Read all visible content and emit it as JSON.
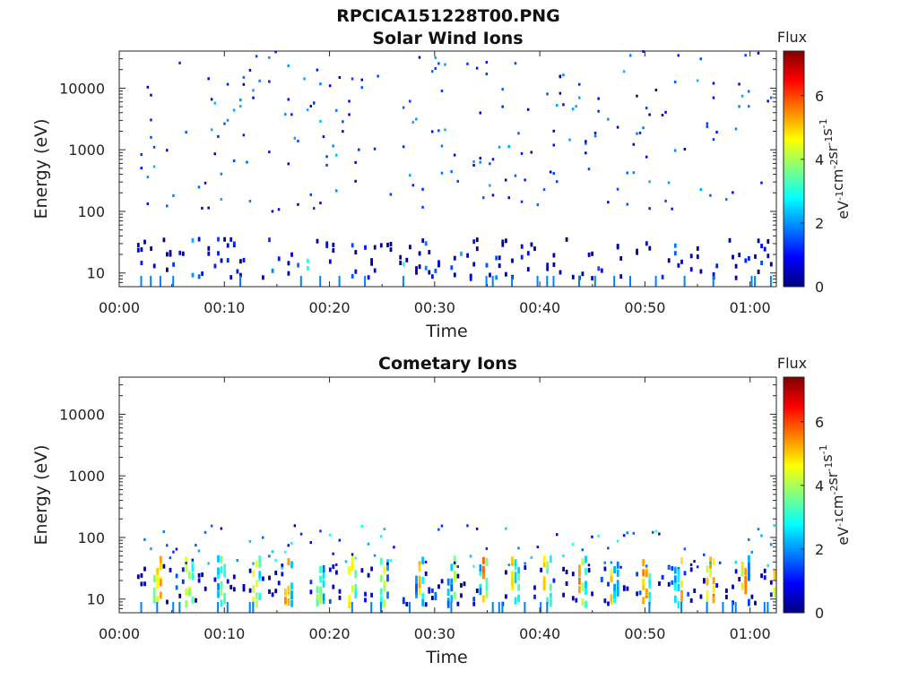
{
  "figure_title": "RPCICA151228T00.PNG",
  "chart_data": [
    {
      "type": "heatmap",
      "title": "Solar Wind Ions",
      "xlabel": "Time",
      "ylabel": "Energy (eV)",
      "x_ticks": [
        "00:00",
        "00:10",
        "00:20",
        "00:30",
        "00:40",
        "00:50",
        "01:00"
      ],
      "x_range_minutes": [
        0,
        62.5
      ],
      "y_scale": "log",
      "y_ticks": [
        "10",
        "100",
        "1000",
        "10000"
      ],
      "y_range": [
        6,
        40000
      ],
      "colorbar": {
        "title": "Flux",
        "label": "eV-1cm-2sr-1s-1",
        "ticks": [
          "0",
          "2",
          "4",
          "6"
        ],
        "range": [
          0,
          7.4
        ],
        "colormap": "jet"
      },
      "pattern": "sparse low-flux dots from ~100 eV to ~30000 eV across the whole hour; denser low-energy band around 10-30 eV with occasional moderate flux",
      "seed": 11,
      "high_density": 1,
      "high_max_value": 2.0,
      "low_density": 1,
      "low_max_value": 3.5
    },
    {
      "type": "heatmap",
      "title": "Cometary Ions",
      "xlabel": "Time",
      "ylabel": "Energy (eV)",
      "x_ticks": [
        "00:00",
        "00:10",
        "00:20",
        "00:30",
        "00:40",
        "00:50",
        "01:00"
      ],
      "x_range_minutes": [
        0,
        62.5
      ],
      "y_scale": "log",
      "y_ticks": [
        "10",
        "100",
        "1000",
        "10000"
      ],
      "y_range": [
        6,
        40000
      ],
      "colorbar": {
        "title": "Flux",
        "label": "eV-1cm-2sr-1s-1",
        "ticks": [
          "0",
          "2",
          "4",
          "6"
        ],
        "range": [
          0,
          7.4
        ],
        "colormap": "jet"
      },
      "pattern": "few low-flux dots above 200 eV; periodic bursts (~every 3 min) of higher flux (up to ~6) between 10 and 40 eV, with scattered points up to ~150 eV",
      "seed": 47,
      "high_density": 0.3,
      "high_max_value": 1.5,
      "low_density": 1,
      "low_max_value": 6.0,
      "burst_period_minutes": 3.1
    }
  ]
}
